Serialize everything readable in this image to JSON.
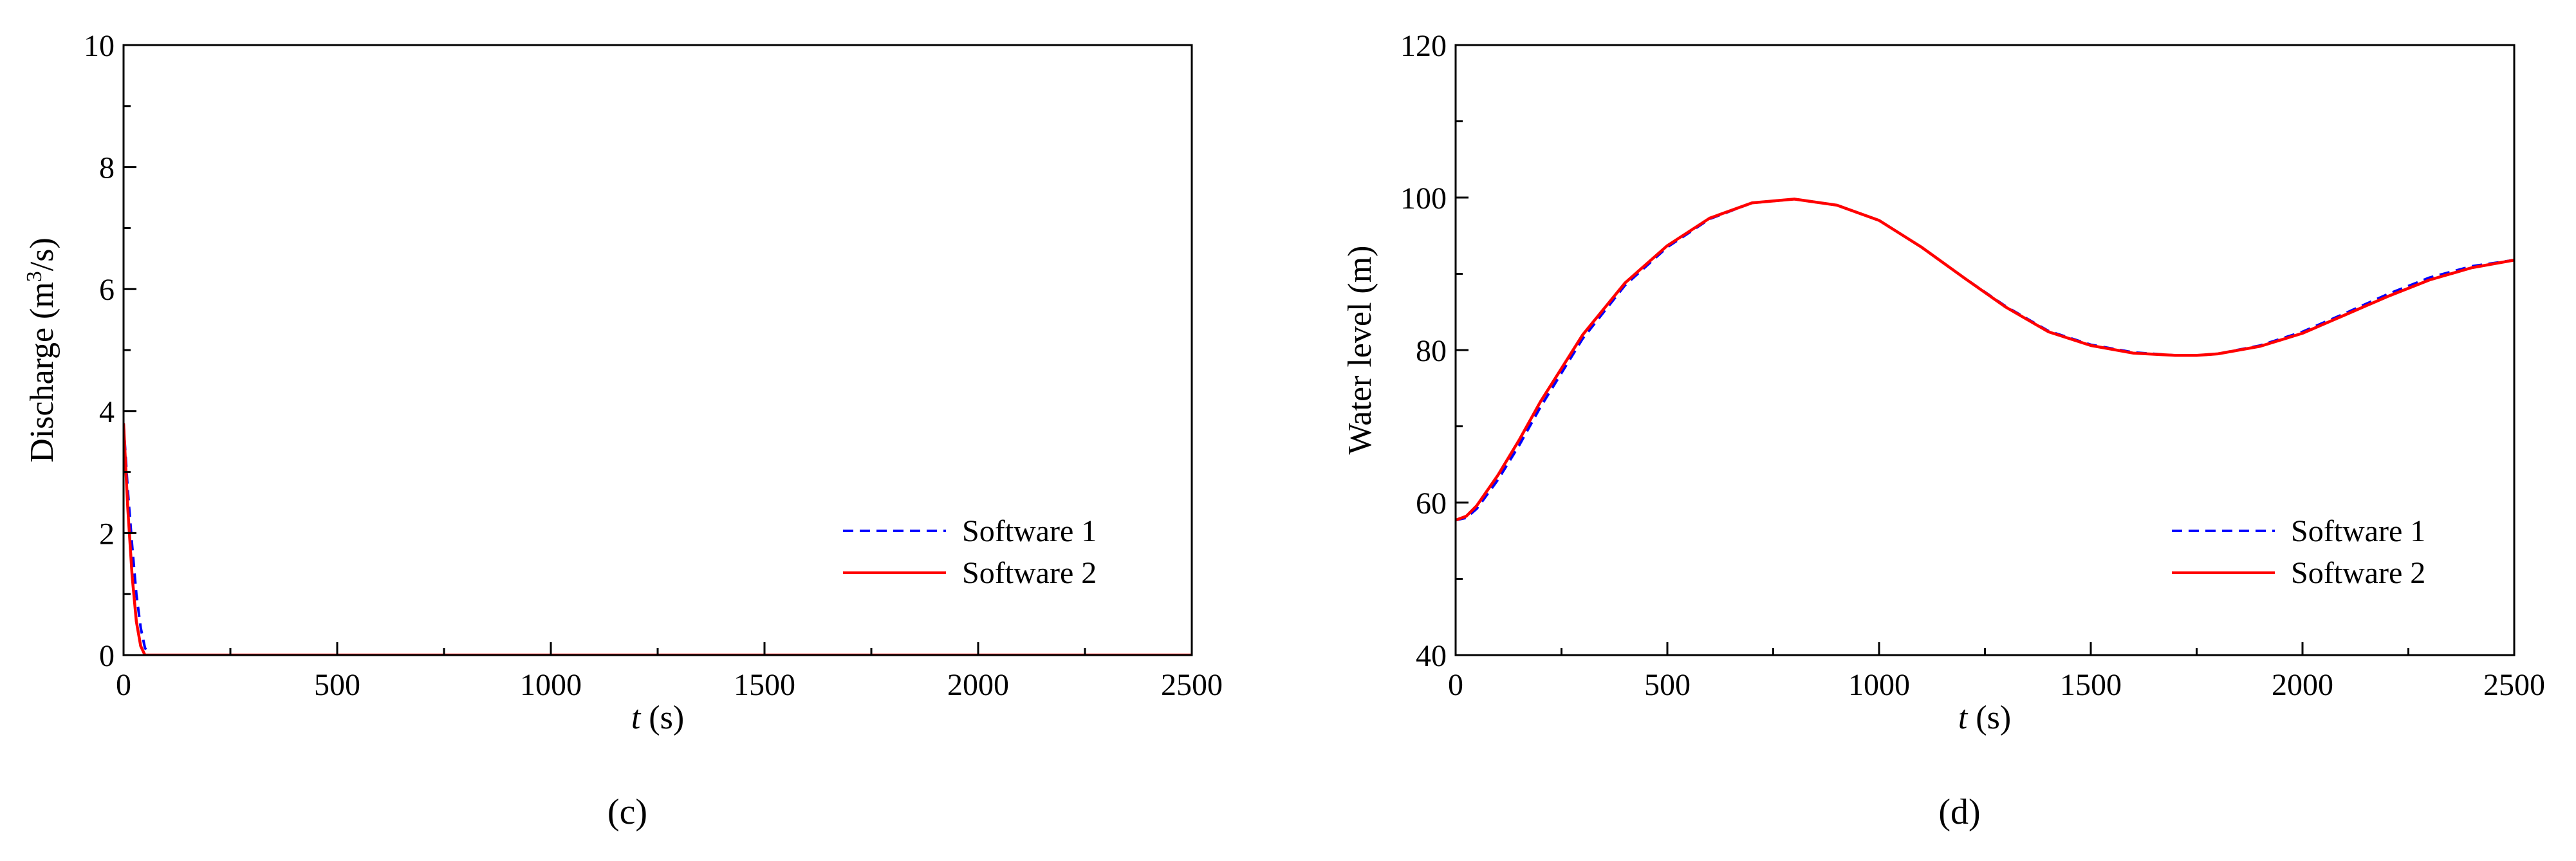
{
  "figure": {
    "panels": [
      "(c)",
      "(d)"
    ]
  },
  "colors": {
    "software_1": "#0000ff",
    "software_2": "#ff0000",
    "axes": "#000000"
  },
  "chart_data": [
    {
      "type": "line",
      "panel_label": "(c)",
      "xlabel_italic": "t",
      "xlabel_rest": " (s)",
      "ylabel_prefix": "Discharge (m",
      "ylabel_sup": "3",
      "ylabel_suffix": "/s)",
      "xlim": [
        0,
        2500
      ],
      "ylim": [
        0,
        10
      ],
      "xticks": [
        0,
        500,
        1000,
        1500,
        2000,
        2500
      ],
      "yticks": [
        0,
        2,
        4,
        6,
        8,
        10
      ],
      "legend_position": "bottom-right",
      "series": [
        {
          "name": "Software 1",
          "style": "dashed",
          "color": "#0000ff",
          "x": [
            0,
            10,
            20,
            30,
            40,
            50,
            60,
            2500
          ],
          "y": [
            3.8,
            2.7,
            1.8,
            1.0,
            0.45,
            0.12,
            0,
            0
          ]
        },
        {
          "name": "Software 2",
          "style": "solid",
          "color": "#ff0000",
          "x": [
            0,
            10,
            20,
            30,
            40,
            50,
            2500
          ],
          "y": [
            3.8,
            2.4,
            1.3,
            0.55,
            0.15,
            0,
            0
          ]
        }
      ]
    },
    {
      "type": "line",
      "panel_label": "(d)",
      "xlabel_italic": "t",
      "xlabel_rest": " (s)",
      "ylabel": "Water level (m)",
      "xlim": [
        0,
        2500
      ],
      "ylim": [
        40,
        120
      ],
      "xticks": [
        0,
        500,
        1000,
        1500,
        2000,
        2500
      ],
      "yticks": [
        40,
        60,
        80,
        100,
        120
      ],
      "legend_position": "bottom-right",
      "series": [
        {
          "name": "Software 1",
          "style": "dashed",
          "color": "#0000ff",
          "x": [
            0,
            25,
            50,
            100,
            150,
            200,
            300,
            400,
            500,
            600,
            700,
            800,
            900,
            1000,
            1100,
            1200,
            1300,
            1400,
            1500,
            1600,
            1700,
            1750,
            1800,
            1900,
            2000,
            2100,
            2200,
            2300,
            2400,
            2500
          ],
          "y": [
            57.7,
            58.0,
            59.2,
            63.0,
            67.5,
            72.5,
            81.5,
            88.5,
            93.5,
            97.2,
            99.3,
            99.8,
            99.0,
            97.0,
            93.5,
            89.5,
            85.7,
            82.5,
            80.7,
            79.7,
            79.3,
            79.3,
            79.5,
            80.6,
            82.4,
            84.8,
            87.3,
            89.5,
            91.0,
            91.8
          ]
        },
        {
          "name": "Software 2",
          "style": "solid",
          "color": "#ff0000",
          "x": [
            0,
            25,
            50,
            100,
            150,
            200,
            300,
            400,
            500,
            600,
            700,
            800,
            900,
            1000,
            1100,
            1200,
            1300,
            1400,
            1500,
            1600,
            1700,
            1750,
            1800,
            1900,
            2000,
            2100,
            2200,
            2300,
            2400,
            2500
          ],
          "y": [
            57.7,
            58.2,
            59.6,
            63.6,
            68.2,
            73.2,
            82.0,
            88.8,
            93.7,
            97.3,
            99.3,
            99.8,
            99.0,
            97.0,
            93.5,
            89.5,
            85.6,
            82.4,
            80.6,
            79.6,
            79.3,
            79.3,
            79.5,
            80.5,
            82.2,
            84.6,
            87.0,
            89.2,
            90.8,
            91.8
          ]
        }
      ]
    }
  ]
}
